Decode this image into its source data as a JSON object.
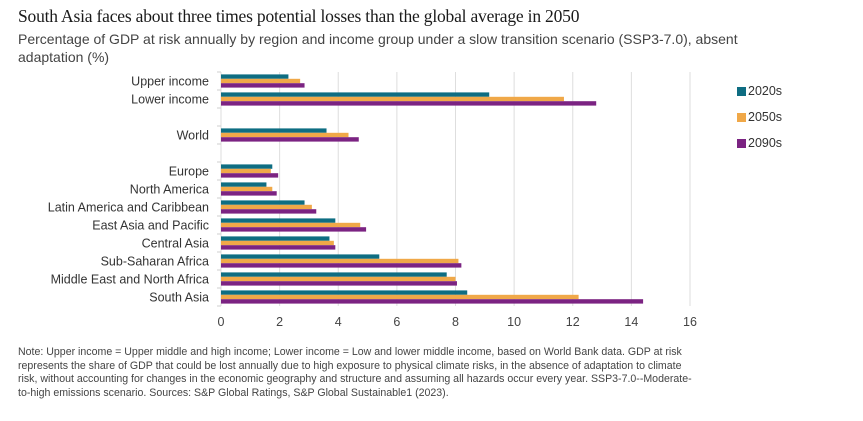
{
  "title": "South Asia faces about three times potential losses than the global average in 2050",
  "subtitle": "Percentage of GDP at risk annually by region and income group under a slow transition scenario (SSP3-7.0), absent adaptation (%)",
  "note": "Note: Upper income = Upper middle and high income; Lower income = Low and lower middle income, based on World Bank data. GDP at risk represents the share of GDP that could be lost annually due to high exposure to physical climate risks, in the absence of adaptation to climate risk, without accounting for changes in the economic geography and structure and assuming all hazards occur every year. SSP3-7.0--Moderate-to-high emissions scenario. Sources: S&P Global Ratings, S&P Global Sustainable1 (2023).",
  "chart_data": {
    "type": "bar",
    "orientation": "horizontal",
    "title": "South Asia faces about three times potential losses than the global average in 2050",
    "xlabel": "",
    "ylabel": "",
    "xlim": [
      0,
      16
    ],
    "xticks": [
      0,
      2,
      4,
      6,
      8,
      10,
      12,
      14,
      16
    ],
    "grid": true,
    "legend_position": "right",
    "categories": [
      "Upper income",
      "Lower income",
      "",
      "World",
      "",
      "Europe",
      "North America",
      "Latin America and Caribbean",
      "East Asia and Pacific",
      "Central Asia",
      "Sub-Saharan Africa",
      "Middle East and North Africa",
      "South Asia"
    ],
    "series": [
      {
        "name": "2020s",
        "color": "#0e6d82",
        "values": [
          2.3,
          9.15,
          null,
          3.6,
          null,
          1.75,
          1.55,
          2.85,
          3.9,
          3.7,
          5.4,
          7.7,
          8.4
        ]
      },
      {
        "name": "2050s",
        "color": "#f0a848",
        "values": [
          2.7,
          11.7,
          null,
          4.35,
          null,
          1.7,
          1.75,
          3.1,
          4.75,
          3.85,
          8.1,
          8.0,
          12.2
        ]
      },
      {
        "name": "2090s",
        "color": "#7b2382",
        "values": [
          2.85,
          12.8,
          null,
          4.7,
          null,
          1.95,
          1.9,
          3.25,
          4.95,
          3.9,
          8.2,
          8.05,
          14.4
        ]
      }
    ]
  }
}
